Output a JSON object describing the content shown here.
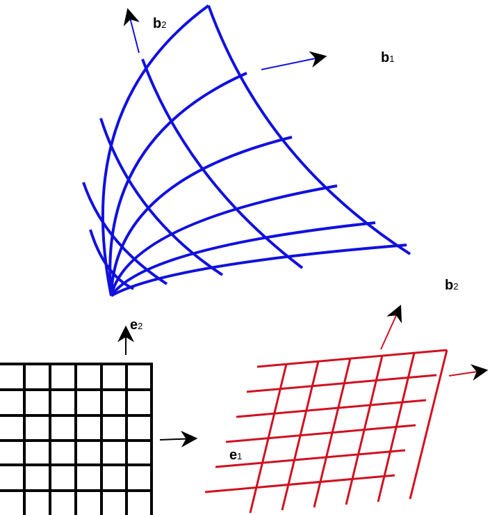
{
  "labels": [
    {
      "base": "b",
      "sub": "2"
    },
    {
      "base": "b",
      "sub": "1"
    },
    {
      "base": "b",
      "sub": "2"
    },
    {
      "base": "e",
      "sub": "2"
    },
    {
      "base": "e",
      "sub": "1"
    }
  ]
}
